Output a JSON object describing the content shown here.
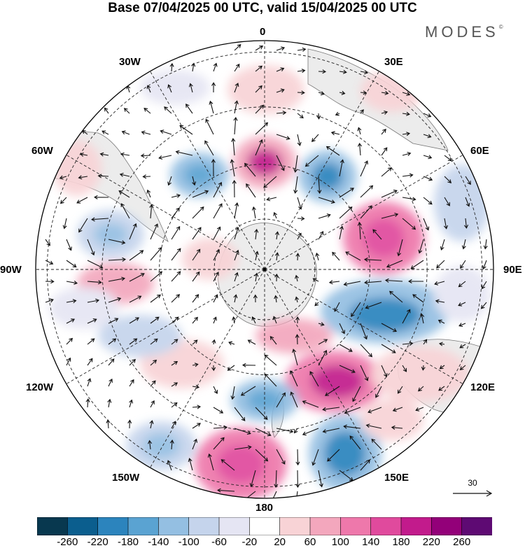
{
  "title": "Base 07/04/2025 00 UTC, valid 15/04/2025 00 UTC",
  "brand": "MODES",
  "brand_mark": "©",
  "map": {
    "projection": "south polar stereographic",
    "longitude_labels": {
      "top": "0",
      "top_left": "30W",
      "top_right": "30E",
      "upper_left": "60W",
      "upper_right": "60E",
      "left": "90W",
      "right": "90E",
      "lower_left": "120W",
      "lower_right": "120E",
      "bottom_left": "150W",
      "bottom_right": "150E",
      "bottom": "180"
    },
    "reference_vector_label": "30",
    "colors": {
      "land": "#ececec",
      "coast": "#777777",
      "grid": "#222222",
      "arrow": "#111111"
    }
  },
  "colorbar": {
    "ticks": [
      "-260",
      "-220",
      "-180",
      "-140",
      "-100",
      "-60",
      "-20",
      "20",
      "60",
      "100",
      "140",
      "180",
      "220",
      "260"
    ],
    "colors": [
      "#08384f",
      "#0b5e8e",
      "#2c84bd",
      "#5aa3d2",
      "#94bfe2",
      "#c5d4ec",
      "#e5e5f3",
      "#ffffff",
      "#f8d3d6",
      "#f3a7bd",
      "#ee78ab",
      "#e04a9d",
      "#c21b8c",
      "#930079",
      "#5e0a73"
    ]
  }
}
